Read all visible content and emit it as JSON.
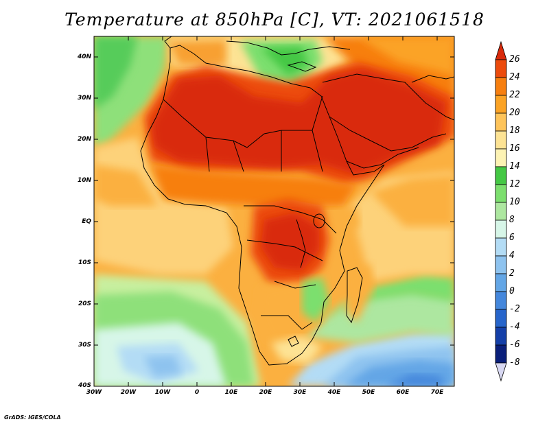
{
  "title": "Temperature at 850hPa [C], VT: 2021061518",
  "credit": "GrADS: IGES/COLA",
  "map": {
    "lat_labels": [
      "40N",
      "30N",
      "20N",
      "10N",
      "EQ",
      "10S",
      "20S",
      "30S",
      "40S"
    ],
    "lon_labels": [
      "30W",
      "20W",
      "10W",
      "0",
      "10E",
      "20E",
      "30E",
      "40E",
      "50E",
      "60E",
      "70E"
    ],
    "lon_range_deg": [
      -30,
      75
    ],
    "lat_range_deg": [
      -40,
      45
    ]
  },
  "colorbar": {
    "levels": [
      "26",
      "24",
      "22",
      "20",
      "18",
      "16",
      "14",
      "12",
      "10",
      "8",
      "6",
      "4",
      "2",
      "0",
      "-2",
      "-4",
      "-6",
      "-8"
    ],
    "colors": [
      "#d92a0b",
      "#ec4b0c",
      "#f77f0f",
      "#fba325",
      "#fec45a",
      "#fde394",
      "#fdf3b4",
      "#44c844",
      "#7cdf6e",
      "#ade7a0",
      "#d7f6e8",
      "#b3dcf5",
      "#8ec3ef",
      "#63a6e6",
      "#4487dc",
      "#2765cb",
      "#143fa8",
      "#0a1f7a",
      "#08104c"
    ],
    "top_arrow_color": "#d92a0b",
    "bottom_arrow_color": "#d8d8f2"
  },
  "palette": {
    "ocean_cool": "#8ee07a",
    "ocean_mild": "#fde394",
    "ocean_warm": "#fba325",
    "land_hot": "#d92a0b",
    "land_warm": "#ec4b0c",
    "south_cold": "#63a6e6",
    "south_cool": "#b3dcf5"
  }
}
